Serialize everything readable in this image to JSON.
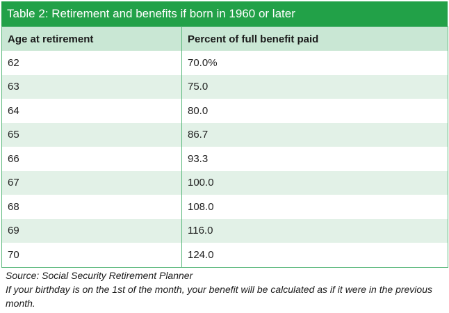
{
  "table": {
    "title": "Table 2: Retirement and benefits if born in 1960 or later",
    "headers": [
      "Age at retirement",
      "Percent of full benefit paid"
    ],
    "rows": [
      [
        "62",
        "70.0%"
      ],
      [
        "63",
        "75.0"
      ],
      [
        "64",
        "80.0"
      ],
      [
        "65",
        "86.7"
      ],
      [
        "66",
        "93.3"
      ],
      [
        "67",
        "100.0"
      ],
      [
        "68",
        "108.0"
      ],
      [
        "69",
        "116.0"
      ],
      [
        "70",
        "124.0"
      ]
    ]
  },
  "footer": {
    "source": "Source: Social Security Retirement Planner",
    "note": "If your birthday is on the 1st of the month, your benefit will be calculated as if it were in the previous month."
  },
  "colors": {
    "title_bar": "#22a148",
    "header_row": "#c9e7d4",
    "stripe_row": "#e2f1e7",
    "border": "#5cb97d"
  }
}
